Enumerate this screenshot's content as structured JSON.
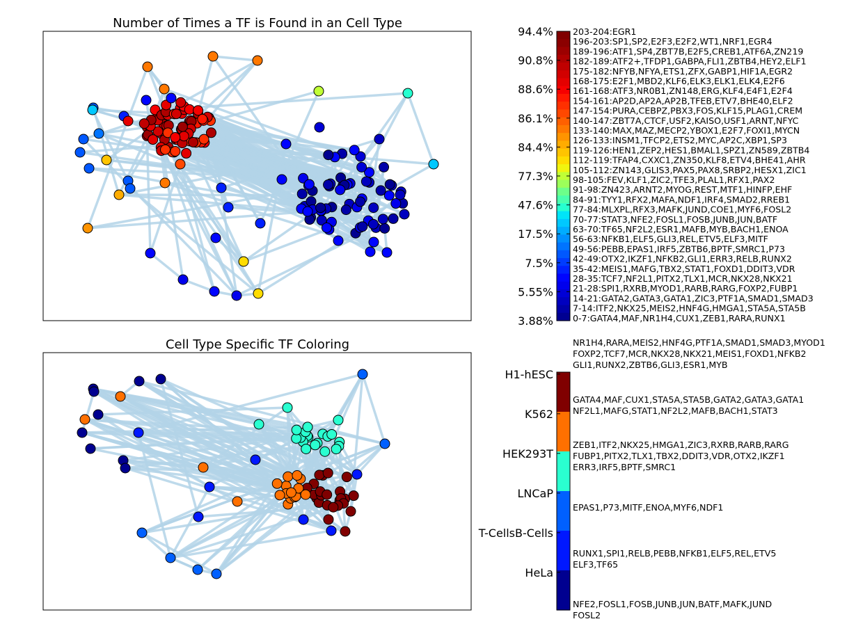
{
  "figure": {
    "panel_top_title": "Number of Times a TF is Found in an Cell Type",
    "panel_bottom_title": "Cell Type Specific TF Coloring"
  },
  "chart_data": [
    {
      "type": "network",
      "title": "Number of Times a TF is Found in an Cell Type",
      "colorbar": {
        "tick_labels_top_to_bottom": [
          "94.4%",
          "90.8%",
          "88.6%",
          "86.1%",
          "84.4%",
          "77.3%",
          "47.6%",
          "17.5%",
          "7.5%",
          "5.55%",
          "3.88%"
        ],
        "colors_top_to_bottom": [
          "#800000",
          "#8b0000",
          "#9c0000",
          "#ae0000",
          "#c00000",
          "#d20000",
          "#e40000",
          "#f60000",
          "#ff1800",
          "#ff3000",
          "#ff4800",
          "#ff6000",
          "#ff7800",
          "#ff9400",
          "#ffac00",
          "#ffc400",
          "#ffdc00",
          "#f0f40f",
          "#c0ff36",
          "#9cff5a",
          "#6dff8a",
          "#4affad",
          "#26ffd0",
          "#00e4f8",
          "#00c8ff",
          "#00acff",
          "#0090ff",
          "#0074ff",
          "#0058ff",
          "#003cff",
          "#0020ff",
          "#0004ff",
          "#0000ed",
          "#0000d6",
          "#0000bf",
          "#0000a8",
          "#000091"
        ],
        "bin_labels_top_to_bottom": [
          "203-204:EGR1",
          "196-203:SP1,SP2,E2F3,E2F2,WT1,NRF1,EGR4",
          "189-196:ATF1,SP4,ZBT7B,E2F5,CREB1,ATF6A,ZN219",
          "182-189:ATF2+,TFDP1,GABPA,FLI1,ZBTB4,HEY2,ELF1",
          "175-182:NFYB,NFYA,ETS1,ZFX,GABP1,HIF1A,EGR2",
          "168-175:E2F1,MBD2,KLF6,ELK3,ELK1,ELK4,E2F6",
          "161-168:ATF3,NR0B1,ZN148,ERG,KLF4,E4F1,E2F4",
          "154-161:AP2D,AP2A,AP2B,TFEB,ETV7,BHE40,ELF2",
          "147-154:PURA,CEBPZ,PBX3,FOS,KLF15,PLAG1,CREM",
          "140-147:ZBT7A,CTCF,USF2,KAISO,USF1,ARNT,NFYC",
          "133-140:MAX,MAZ,MECP2,YBOX1,E2F7,FOXI1,MYCN",
          "126-133:INSM1,TFCP2,ETS2,MYC,AP2C,XBP1,SP3",
          "119-126:HEN1,ZEP2,HES1,BMAL1,SPZ1,ZN589,ZBTB4",
          "112-119:TFAP4,CXXC1,ZN350,KLF8,ETV4,BHE41,AHR",
          "105-112:ZN143,GLIS3,PAX5,PAX8,SRBP2,HESX1,ZIC1",
          "98-105:FEV,KLF1,ZIC2,TFE3,PLAL1,RFX1,PAX2",
          "91-98:ZN423,ARNT2,MYOG,REST,MTF1,HINFP,EHF",
          "84-91:TYY1,RFX2,MAFA,NDF1,IRF4,SMAD2,RREB1",
          "77-84:MLXPL,RFX3,MAFK,JUND,COE1,MYF6,FOSL2",
          "70-77:STAT3,NFE2,FOSL1,FOSB,JUNB,JUN,BATF",
          "63-70:TF65,NF2L2,ESR1,MAFB,MYB,BACH1,ENOA",
          "56-63:NFKB1,ELF5,GLI3,REL,ETV5,ELF3,MITF",
          "49-56:PEBB,EPAS1,IRF5,ZBTB6,BPTF,SMRC1,P73",
          "42-49:OTX2,IKZF1,NFKB2,GLI1,ERR3,RELB,RUNX2",
          "35-42:MEIS1,MAFG,TBX2,STAT1,FOXD1,DDIT3,VDR",
          "28-35:TCF7,NF2L1,PITX2,TLX1,MCR,NKX28,NKX21",
          "21-28:SPI1,RXRB,MYOD1,RARB,RARG,FOXP2,FUBP1",
          "14-21:GATA2,GATA3,GATA1,ZIC3,PTF1A,SMAD1,SMAD3",
          "7-14:ITF2,NKX25,MEIS2,HNF4G,HMGA1,STA5A,STA5B",
          "0-7:GATA4,MAF,NR1H4,CUX1,ZEB1,RARA,RUNX1"
        ]
      },
      "edge_color": "#b3d4e8"
    },
    {
      "type": "network",
      "title": "Cell Type Specific TF Coloring",
      "colorbar": {
        "categories_top_to_bottom": [
          "H1-hESC",
          "K562",
          "HEK293T",
          "LNCaP",
          "T-CellsB-Cells",
          "HeLa"
        ],
        "colors_top_to_bottom": [
          "#800000",
          "#ff7000",
          "#2affd0",
          "#0060ff",
          "#0018ff",
          "#000090"
        ],
        "groups_top_to_bottom": [
          {
            "cell_type": "H1-hESC",
            "lines": [
              "NR1H4,RARA,MEIS2,HNF4G,PTF1A,SMAD1,SMAD3,MYOD1",
              "FOXP2,TCF7,MCR,NKX28,NKX21,MEIS1,FOXD1,NFKB2",
              "GLI1,RUNX2,ZBTB6,GLI3,ESR1,MYB"
            ]
          },
          {
            "cell_type": "K562",
            "lines": [
              "GATA4,MAF,CUX1,STA5A,STA5B,GATA2,GATA3,GATA1",
              "NF2L1,MAFG,STAT1,NF2L2,MAFB,BACH1,STAT3"
            ]
          },
          {
            "cell_type": "HEK293T",
            "lines": [
              "ZEB1,ITF2,NKX25,HMGA1,ZIC3,RXRB,RARB,RARG",
              "FUBP1,PITX2,TLX1,TBX2,DDIT3,VDR,OTX2,IKZF1",
              "ERR3,IRF5,BPTF,SMRC1"
            ]
          },
          {
            "cell_type": "LNCaP",
            "lines": [
              "EPAS1,P73,MITF,ENOA,MYF6,NDF1"
            ]
          },
          {
            "cell_type": "T-CellsB-Cells",
            "lines": [
              "RUNX1,SPI1,RELB,PEBB,NFKB1,ELF5,REL,ETV5",
              "ELF3,TF65"
            ]
          },
          {
            "cell_type": "HeLa",
            "lines": [
              "NFE2,FOSL1,FOSB,JUNB,JUN,BATF,MAFK,JUND",
              "FOSL2"
            ]
          }
        ]
      },
      "edge_color": "#b3d4e8"
    }
  ]
}
